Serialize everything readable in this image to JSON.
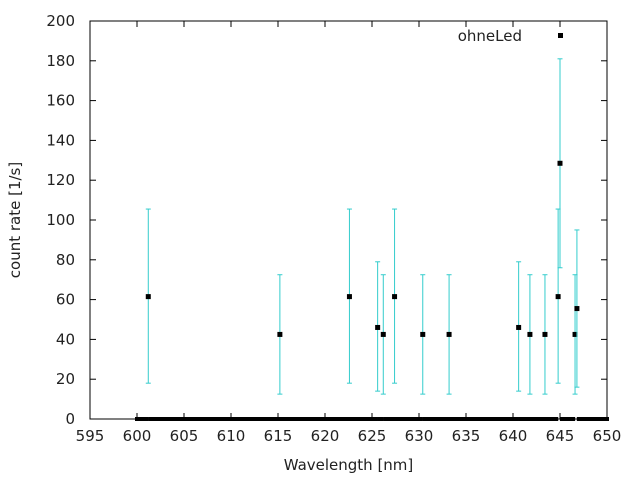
{
  "chart_data": {
    "type": "scatter",
    "xlabel": "Wavelength [nm]",
    "ylabel": "count rate [1/s]",
    "xlim": [
      595,
      650
    ],
    "ylim": [
      0,
      200
    ],
    "xticks": [
      595,
      600,
      605,
      610,
      615,
      620,
      625,
      630,
      635,
      640,
      645,
      650
    ],
    "yticks": [
      0,
      20,
      40,
      60,
      80,
      100,
      120,
      140,
      160,
      180,
      200
    ],
    "grid": false,
    "legend_position": "top-right",
    "colors": {
      "points": "#000000",
      "errorbars": "#33cccc",
      "frame": "#000000"
    },
    "series": [
      {
        "name": "ohneLed",
        "x_start": 600,
        "x_end": 650,
        "x_step": 0.2,
        "baseline": 0,
        "points": [
          {
            "x": 601.2,
            "y": 61.5,
            "ylow": 18,
            "yhigh": 105.5
          },
          {
            "x": 615.2,
            "y": 42.5,
            "ylow": 12.5,
            "yhigh": 72.5
          },
          {
            "x": 622.6,
            "y": 61.5,
            "ylow": 18,
            "yhigh": 105.5
          },
          {
            "x": 625.6,
            "y": 46,
            "ylow": 14,
            "yhigh": 79
          },
          {
            "x": 626.2,
            "y": 42.5,
            "ylow": 12.5,
            "yhigh": 72.5
          },
          {
            "x": 627.4,
            "y": 61.5,
            "ylow": 18,
            "yhigh": 105.5
          },
          {
            "x": 630.4,
            "y": 42.5,
            "ylow": 12.5,
            "yhigh": 72.5
          },
          {
            "x": 633.2,
            "y": 42.5,
            "ylow": 12.5,
            "yhigh": 72.5
          },
          {
            "x": 640.6,
            "y": 46,
            "ylow": 14,
            "yhigh": 79
          },
          {
            "x": 641.8,
            "y": 42.5,
            "ylow": 12.5,
            "yhigh": 72.5
          },
          {
            "x": 643.4,
            "y": 42.5,
            "ylow": 12.5,
            "yhigh": 72.5
          },
          {
            "x": 644.8,
            "y": 61.5,
            "ylow": 18,
            "yhigh": 105.5
          },
          {
            "x": 645.0,
            "y": 128.5,
            "ylow": 76,
            "yhigh": 181
          },
          {
            "x": 646.6,
            "y": 42.5,
            "ylow": 12.5,
            "yhigh": 72.5
          },
          {
            "x": 646.8,
            "y": 55.5,
            "ylow": 16,
            "yhigh": 95
          }
        ]
      }
    ]
  }
}
